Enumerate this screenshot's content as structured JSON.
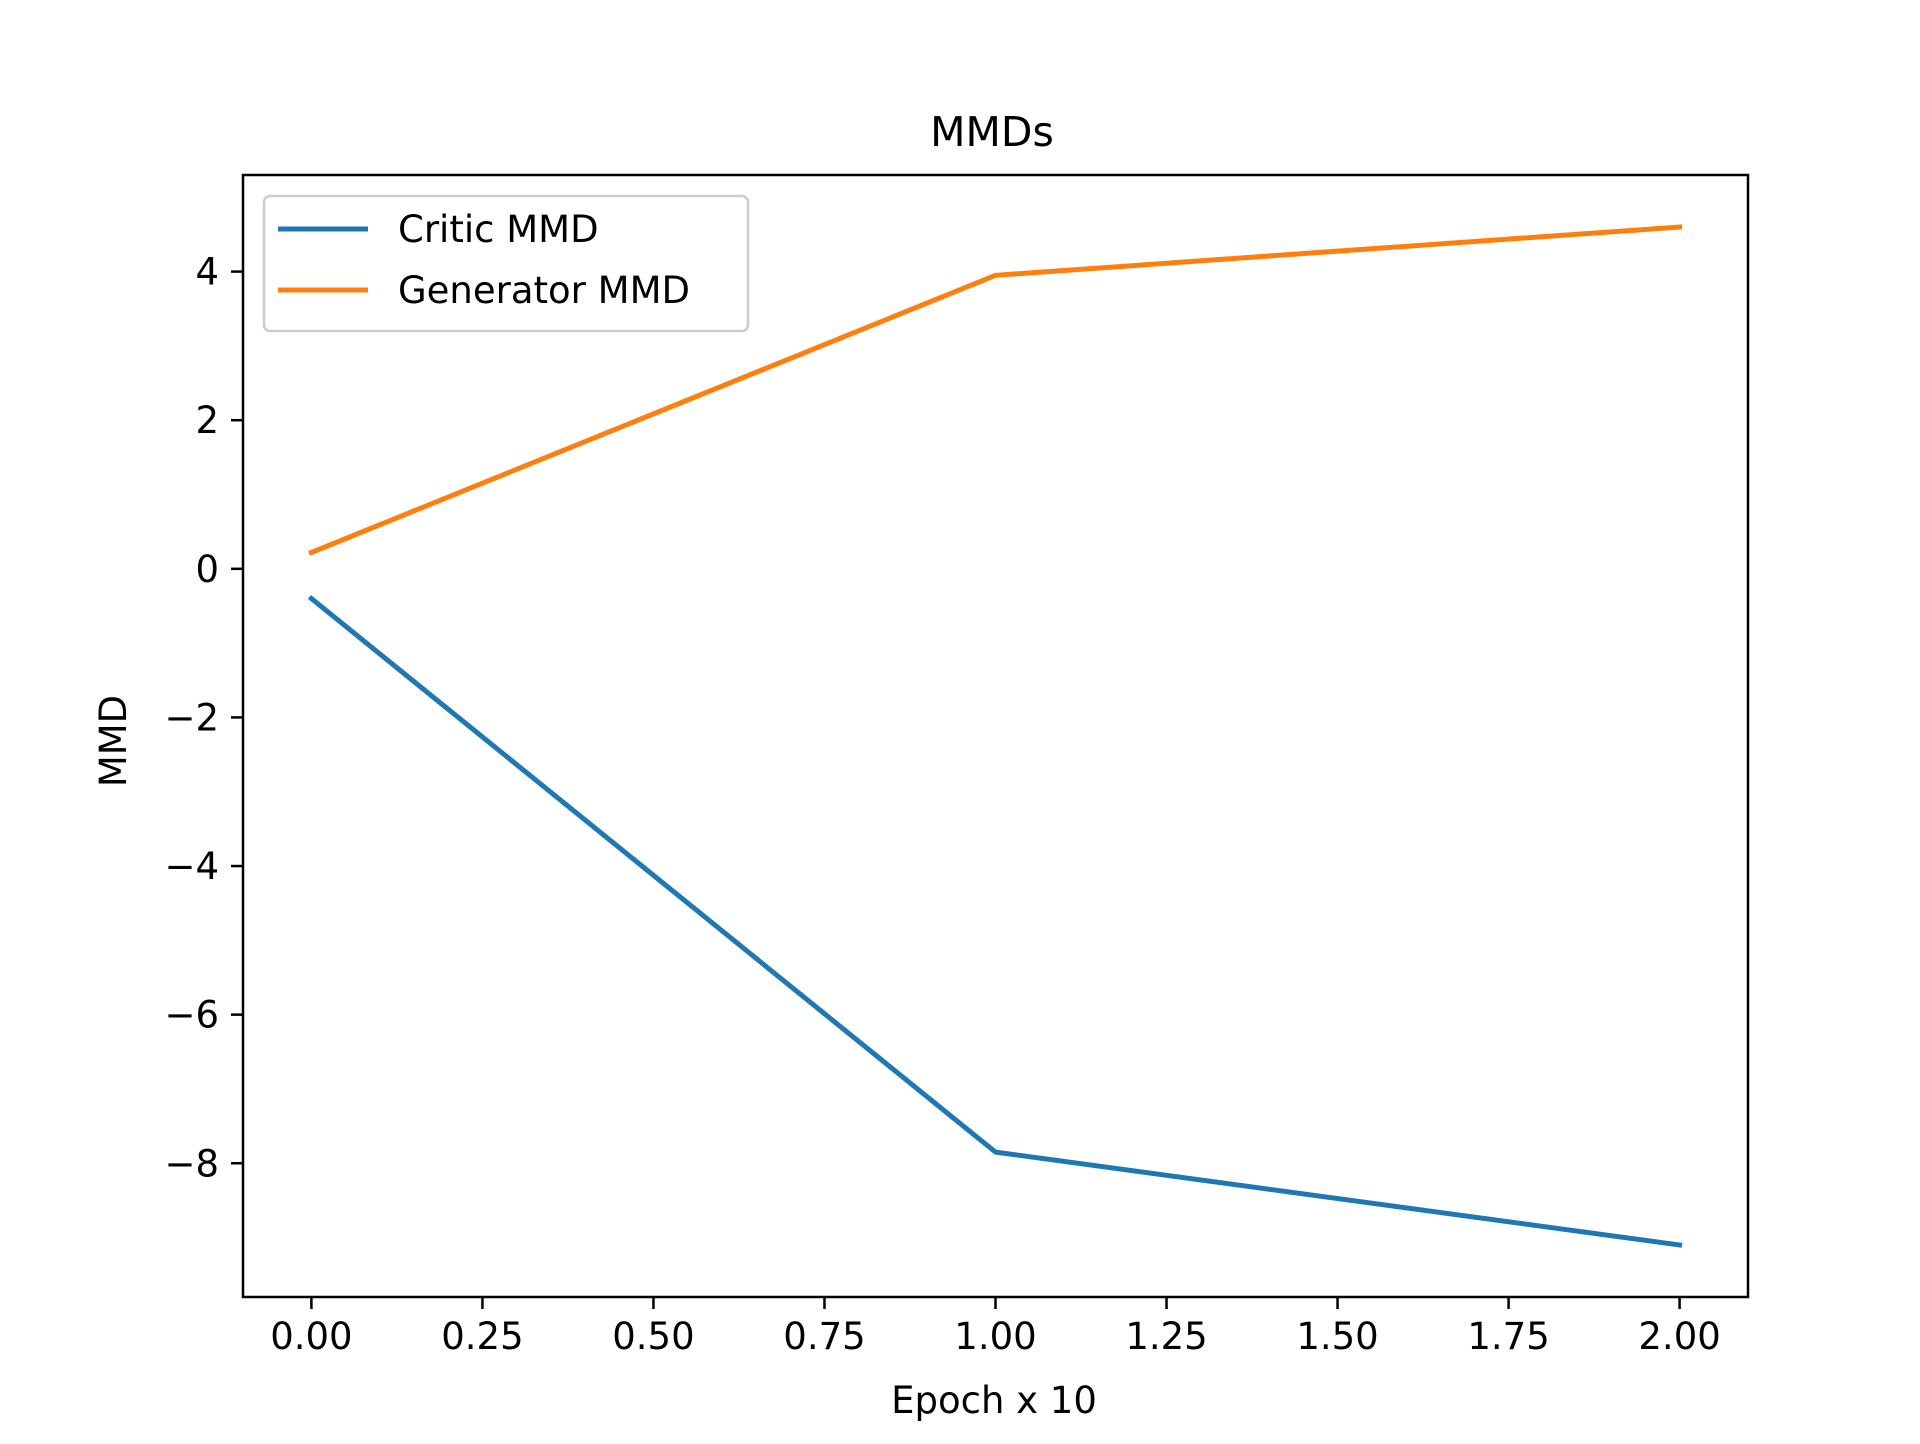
{
  "chart_data": {
    "type": "line",
    "title": "MMDs",
    "xlabel": "Epoch x 10",
    "ylabel": "MMD",
    "x": [
      0,
      1,
      2
    ],
    "series": [
      {
        "name": "Critic MMD",
        "color": "#1f77b4",
        "values": [
          -0.4,
          -7.85,
          -9.1
        ]
      },
      {
        "name": "Generator MMD",
        "color": "#ff7f0e",
        "values": [
          0.22,
          3.95,
          4.6
        ]
      }
    ],
    "xlim": [
      -0.1,
      2.1
    ],
    "ylim": [
      -9.8,
      5.3
    ],
    "xticks": [
      0.0,
      0.25,
      0.5,
      0.75,
      1.0,
      1.25,
      1.5,
      1.75,
      2.0
    ],
    "xtick_labels": [
      "0.00",
      "0.25",
      "0.50",
      "0.75",
      "1.00",
      "1.25",
      "1.50",
      "1.75",
      "2.00"
    ],
    "yticks": [
      -8,
      -6,
      -4,
      -2,
      0,
      2,
      4
    ],
    "ytick_labels": [
      "−8",
      "−6",
      "−4",
      "−2",
      "0",
      "2",
      "4"
    ],
    "grid": false,
    "legend_position": "upper-left"
  }
}
